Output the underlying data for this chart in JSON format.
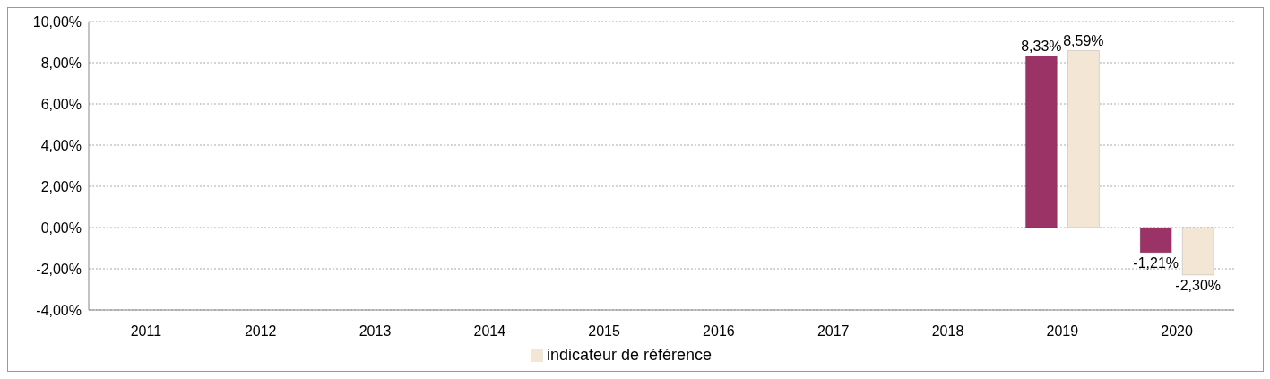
{
  "chart_data": {
    "type": "bar",
    "categories": [
      "2011",
      "2012",
      "2013",
      "2014",
      "2015",
      "2016",
      "2017",
      "2018",
      "2019",
      "2020"
    ],
    "series": [
      {
        "color": "#9c3366",
        "values": [
          null,
          null,
          null,
          null,
          null,
          null,
          null,
          null,
          8.33,
          -1.21
        ],
        "value_labels": [
          null,
          null,
          null,
          null,
          null,
          null,
          null,
          null,
          "8,33%",
          "-1,21%"
        ]
      },
      {
        "name": "indicateur de référence",
        "color": "#f3e6d4",
        "values": [
          null,
          null,
          null,
          null,
          null,
          null,
          null,
          null,
          8.59,
          -2.3
        ],
        "value_labels": [
          null,
          null,
          null,
          null,
          null,
          null,
          null,
          null,
          "8,59%",
          "-2,30%"
        ]
      }
    ],
    "ylim": [
      -4,
      10
    ],
    "yticks": [
      {
        "value": -4,
        "label": "-4,00%"
      },
      {
        "value": -2,
        "label": "-2,00%"
      },
      {
        "value": 0,
        "label": "0,00%"
      },
      {
        "value": 2,
        "label": "2,00%"
      },
      {
        "value": 4,
        "label": "4,00%"
      },
      {
        "value": 6,
        "label": "6,00%"
      },
      {
        "value": 8,
        "label": "8,00%"
      },
      {
        "value": 10,
        "label": "10,00%"
      }
    ],
    "grid": "y",
    "legend": "bottom"
  }
}
